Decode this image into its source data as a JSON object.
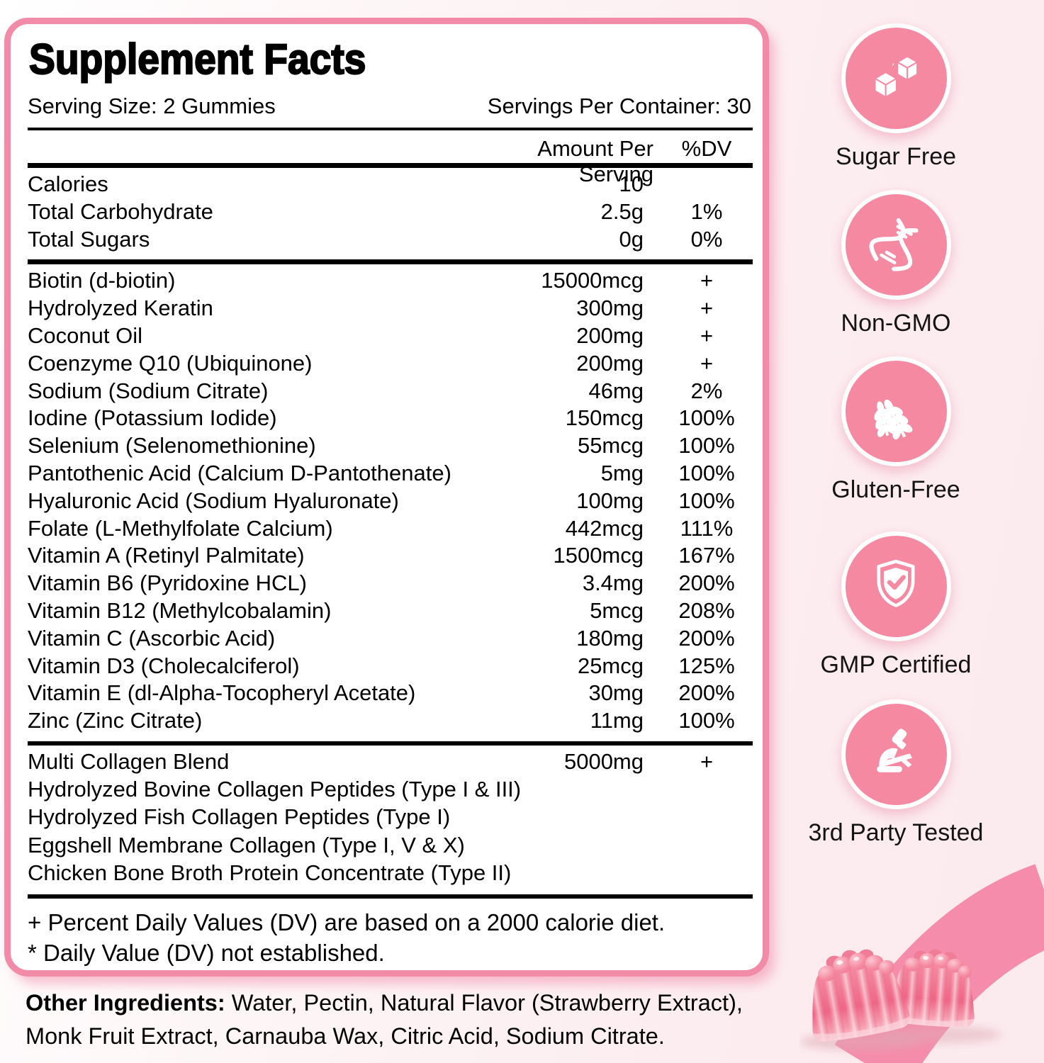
{
  "panel": {
    "title": "Supplement Facts",
    "serving_size": "Serving Size: 2 Gummies",
    "servings_per_container": "Servings Per Container: 30",
    "columns": {
      "amount": "Amount Per Serving",
      "dv": "%DV"
    },
    "macro_rows": [
      {
        "name": "Calories",
        "amount": "10",
        "dv": ""
      },
      {
        "name": "Total Carbohydrate",
        "amount": "2.5g",
        "dv": "1%"
      },
      {
        "name": "Total Sugars",
        "amount": "0g",
        "dv": "0%"
      }
    ],
    "nutrient_rows": [
      {
        "name": "Biotin (d-biotin)",
        "amount": "15000mcg",
        "dv": "+"
      },
      {
        "name": "Hydrolyzed Keratin",
        "amount": "300mg",
        "dv": "+"
      },
      {
        "name": "Coconut Oil",
        "amount": "200mg",
        "dv": "+"
      },
      {
        "name": "Coenzyme Q10 (Ubiquinone)",
        "amount": "200mg",
        "dv": "+"
      },
      {
        "name": "Sodium (Sodium Citrate)",
        "amount": "46mg",
        "dv": "2%"
      },
      {
        "name": "Iodine (Potassium Iodide)",
        "amount": "150mcg",
        "dv": "100%"
      },
      {
        "name": "Selenium (Selenomethionine)",
        "amount": "55mcg",
        "dv": "100%"
      },
      {
        "name": "Pantothenic Acid (Calcium D-Pantothenate)",
        "amount": "5mg",
        "dv": "100%"
      },
      {
        "name": "Hyaluronic Acid (Sodium Hyaluronate)",
        "amount": "100mg",
        "dv": "100%"
      },
      {
        "name": "Folate (L-Methylfolate Calcium)",
        "amount": "442mcg",
        "dv": "111%"
      },
      {
        "name": "Vitamin A (Retinyl Palmitate)",
        "amount": "1500mcg",
        "dv": "167%"
      },
      {
        "name": "Vitamin B6 (Pyridoxine HCL)",
        "amount": "3.4mg",
        "dv": "200%"
      },
      {
        "name": "Vitamin B12 (Methylcobalamin)",
        "amount": "5mcg",
        "dv": "208%"
      },
      {
        "name": "Vitamin C (Ascorbic Acid)",
        "amount": "180mg",
        "dv": "200%"
      },
      {
        "name": "Vitamin D3 (Cholecalciferol)",
        "amount": "25mcg",
        "dv": "125%"
      },
      {
        "name": "Vitamin E (dl-Alpha-Tocopheryl Acetate)",
        "amount": "30mg",
        "dv": "200%"
      },
      {
        "name": "Zinc (Zinc Citrate)",
        "amount": "11mg",
        "dv": "100%"
      }
    ],
    "blend": {
      "name": "Multi Collagen Blend",
      "amount": "5000mg",
      "dv": "+",
      "components": [
        "Hydrolyzed Bovine Collagen Peptides (Type I & III)",
        "Hydrolyzed Fish Collagen Peptides (Type I)",
        "Eggshell Membrane Collagen (Type I, V & X)",
        "Chicken Bone Broth Protein Concentrate (Type II)"
      ]
    },
    "footnotes": [
      "+ Percent Daily Values (DV) are based on a 2000 calorie diet.",
      "* Daily Value (DV) not established."
    ]
  },
  "other_ingredients": {
    "label": "Other Ingredients:",
    "text": " Water, Pectin, Natural Flavor (Strawberry Extract), Monk Fruit Extract, Carnauba Wax, Citric Acid, Sodium Citrate."
  },
  "badges": [
    {
      "label": "Sugar Free",
      "icon": "sugar-cubes-icon"
    },
    {
      "label": "Non-GMO",
      "icon": "dna-icon"
    },
    {
      "label": "Gluten-Free",
      "icon": "wheat-icon"
    },
    {
      "label": "GMP Certified",
      "icon": "shield-check-icon"
    },
    {
      "label": "3rd Party Tested",
      "icon": "microscope-icon"
    }
  ],
  "decoration": {
    "gummies": "two pink gummy candies",
    "swoosh": "pink curved ribbon"
  },
  "colors": {
    "badge_pink": "#F689A2",
    "panel_border_pink": "#F28BA8",
    "background_pink": "#FCEDF0",
    "swoosh_pink": "#F58CAB",
    "text": "#000000"
  }
}
